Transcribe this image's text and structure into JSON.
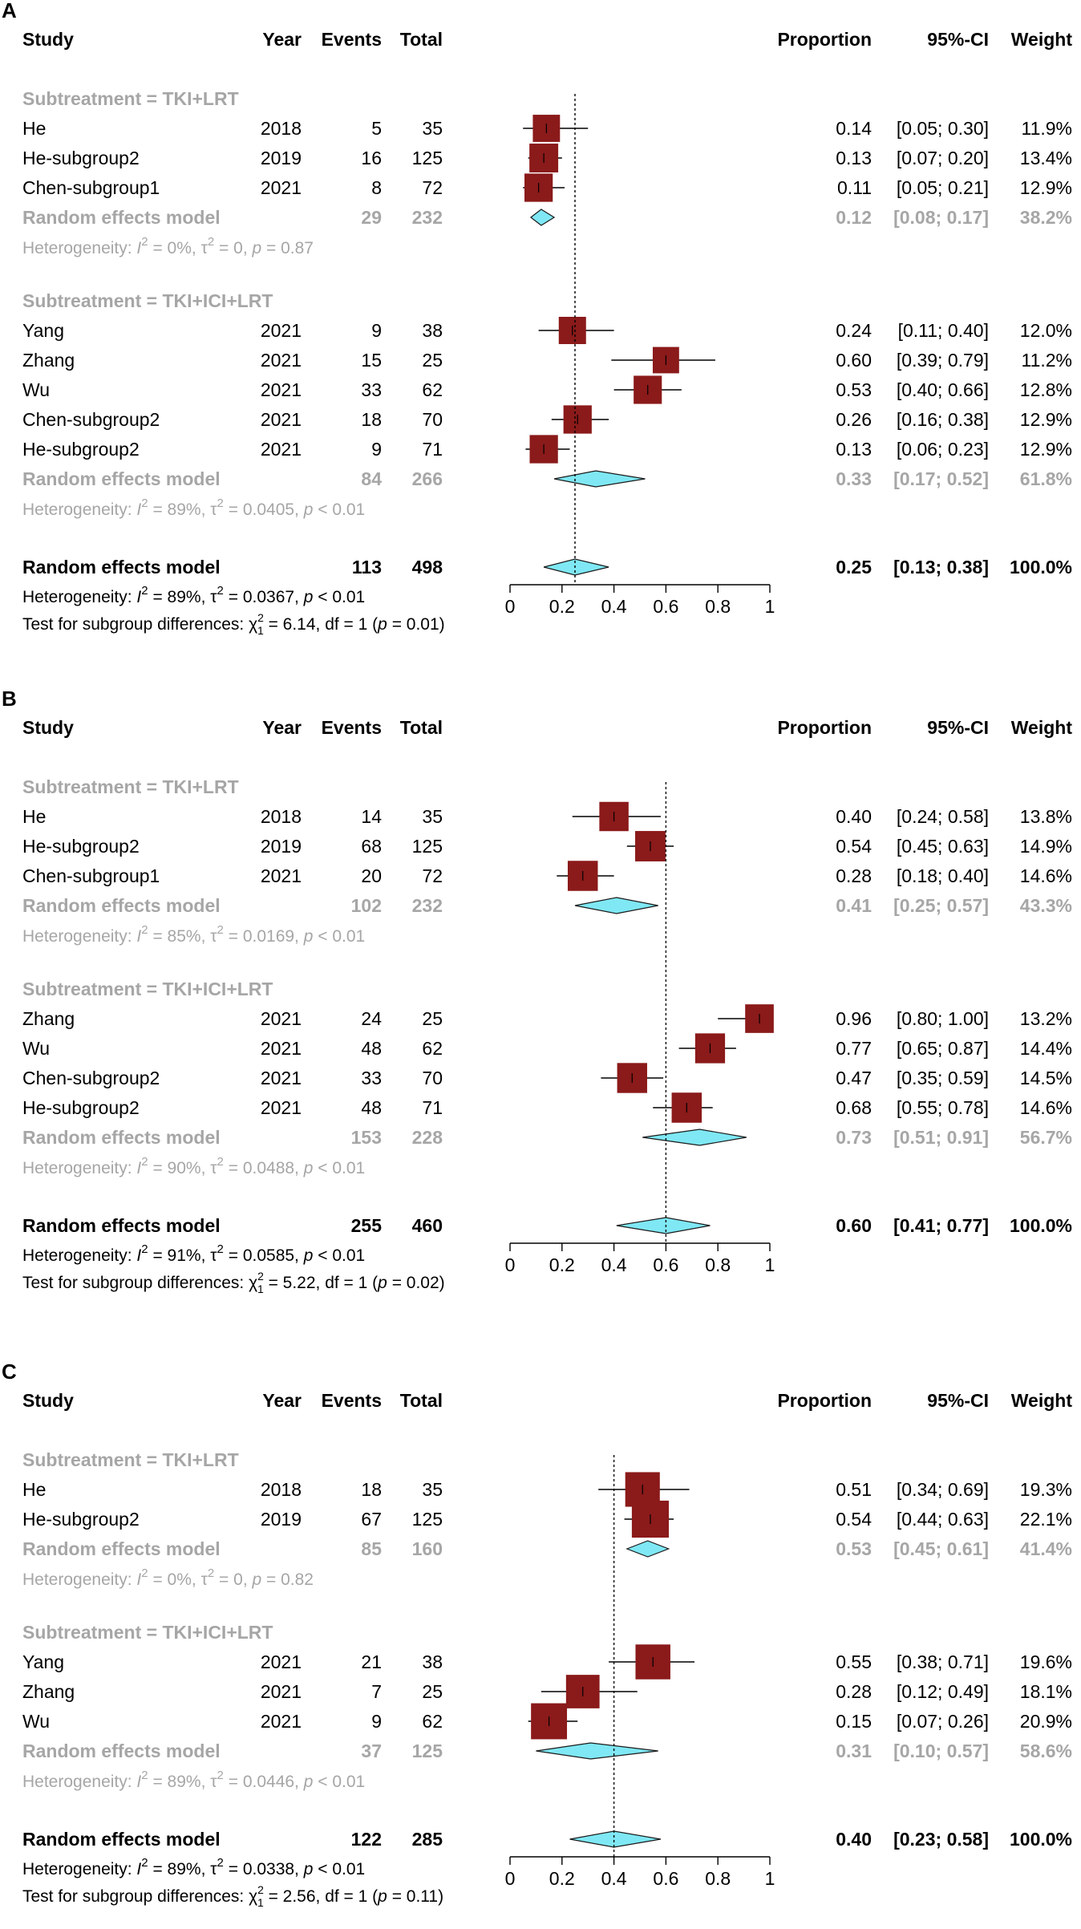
{
  "chart_data": [
    {
      "type": "forest",
      "panel_label": "A",
      "headers": {
        "study": "Study",
        "year": "Year",
        "events": "Events",
        "total": "Total",
        "proportion": "Proportion",
        "ci": "95%-CI",
        "weight": "Weight"
      },
      "x_axis": {
        "range": [
          0,
          1
        ],
        "ticks": [
          0,
          0.2,
          0.4,
          0.6,
          0.8,
          1
        ],
        "tick_labels": [
          "0",
          "0.2",
          "0.4",
          "0.6",
          "0.8",
          "1"
        ]
      },
      "reference_line": 0.25,
      "subgroups": [
        {
          "label": "Subtreatment = TKI+LRT",
          "studies": [
            {
              "study": "He",
              "year": "2018",
              "events": "5",
              "total": "35",
              "prop": 0.14,
              "lo": 0.05,
              "hi": 0.3,
              "prop_text": "0.14",
              "ci_text": "[0.05; 0.30]",
              "weight_text": "11.9%",
              "w": 11.9
            },
            {
              "study": "He-subgroup2",
              "year": "2019",
              "events": "16",
              "total": "125",
              "prop": 0.13,
              "lo": 0.07,
              "hi": 0.2,
              "prop_text": "0.13",
              "ci_text": "[0.07; 0.20]",
              "weight_text": "13.4%",
              "w": 13.4
            },
            {
              "study": "Chen-subgroup1",
              "year": "2021",
              "events": "8",
              "total": "72",
              "prop": 0.11,
              "lo": 0.05,
              "hi": 0.21,
              "prop_text": "0.11",
              "ci_text": "[0.05; 0.21]",
              "weight_text": "12.9%",
              "w": 12.9
            }
          ],
          "model": {
            "label": "Random effects model",
            "events": "29",
            "total": "232",
            "prop": 0.12,
            "lo": 0.08,
            "hi": 0.17,
            "prop_text": "0.12",
            "ci_text": "[0.08; 0.17]",
            "weight_text": "38.2%"
          },
          "heterogeneity": {
            "prefix": "Heterogeneity: ",
            "i2": "= 0%, ",
            "tau2": " = 0, ",
            "p": " = 0.87"
          }
        },
        {
          "label": "Subtreatment = TKI+ICI+LRT",
          "studies": [
            {
              "study": "Yang",
              "year": "2021",
              "events": "9",
              "total": "38",
              "prop": 0.24,
              "lo": 0.11,
              "hi": 0.4,
              "prop_text": "0.24",
              "ci_text": "[0.11; 0.40]",
              "weight_text": "12.0%",
              "w": 12.0
            },
            {
              "study": "Zhang",
              "year": "2021",
              "events": "15",
              "total": "25",
              "prop": 0.6,
              "lo": 0.39,
              "hi": 0.79,
              "prop_text": "0.60",
              "ci_text": "[0.39; 0.79]",
              "weight_text": "11.2%",
              "w": 11.2
            },
            {
              "study": "Wu",
              "year": "2021",
              "events": "33",
              "total": "62",
              "prop": 0.53,
              "lo": 0.4,
              "hi": 0.66,
              "prop_text": "0.53",
              "ci_text": "[0.40; 0.66]",
              "weight_text": "12.8%",
              "w": 12.8
            },
            {
              "study": "Chen-subgroup2",
              "year": "2021",
              "events": "18",
              "total": "70",
              "prop": 0.26,
              "lo": 0.16,
              "hi": 0.38,
              "prop_text": "0.26",
              "ci_text": "[0.16; 0.38]",
              "weight_text": "12.9%",
              "w": 12.9
            },
            {
              "study": "He-subgroup2",
              "year": "2021",
              "events": "9",
              "total": "71",
              "prop": 0.13,
              "lo": 0.06,
              "hi": 0.23,
              "prop_text": "0.13",
              "ci_text": "[0.06; 0.23]",
              "weight_text": "12.9%",
              "w": 12.9
            }
          ],
          "model": {
            "label": "Random effects model",
            "events": "84",
            "total": "266",
            "prop": 0.33,
            "lo": 0.17,
            "hi": 0.52,
            "prop_text": "0.33",
            "ci_text": "[0.17; 0.52]",
            "weight_text": "61.8%"
          },
          "heterogeneity": {
            "prefix": "Heterogeneity: ",
            "i2": "= 89%, ",
            "tau2": " = 0.0405, ",
            "p": " < 0.01"
          }
        }
      ],
      "overall": {
        "label": "Random effects model",
        "events": "113",
        "total": "498",
        "prop": 0.25,
        "lo": 0.13,
        "hi": 0.38,
        "prop_text": "0.25",
        "ci_text": "[0.13; 0.38]",
        "weight_text": "100.0%"
      },
      "overall_heterogeneity": {
        "prefix": "Heterogeneity: ",
        "i2": "= 89%, ",
        "tau2": " = 0.0367, ",
        "p": " < 0.01"
      },
      "subgroup_test": {
        "prefix": "Test for subgroup differences: ",
        "chi_value": " = 6.14, df = 1 (",
        "p_value": " = 0.01)"
      }
    },
    {
      "type": "forest",
      "panel_label": "B",
      "headers": {
        "study": "Study",
        "year": "Year",
        "events": "Events",
        "total": "Total",
        "proportion": "Proportion",
        "ci": "95%-CI",
        "weight": "Weight"
      },
      "x_axis": {
        "range": [
          0,
          1
        ],
        "ticks": [
          0,
          0.2,
          0.4,
          0.6,
          0.8,
          1
        ],
        "tick_labels": [
          "0",
          "0.2",
          "0.4",
          "0.6",
          "0.8",
          "1"
        ]
      },
      "reference_line": 0.6,
      "subgroups": [
        {
          "label": "Subtreatment = TKI+LRT",
          "studies": [
            {
              "study": "He",
              "year": "2018",
              "events": "14",
              "total": "35",
              "prop": 0.4,
              "lo": 0.24,
              "hi": 0.58,
              "prop_text": "0.40",
              "ci_text": "[0.24; 0.58]",
              "weight_text": "13.8%",
              "w": 13.8
            },
            {
              "study": "He-subgroup2",
              "year": "2019",
              "events": "68",
              "total": "125",
              "prop": 0.54,
              "lo": 0.45,
              "hi": 0.63,
              "prop_text": "0.54",
              "ci_text": "[0.45; 0.63]",
              "weight_text": "14.9%",
              "w": 14.9
            },
            {
              "study": "Chen-subgroup1",
              "year": "2021",
              "events": "20",
              "total": "72",
              "prop": 0.28,
              "lo": 0.18,
              "hi": 0.4,
              "prop_text": "0.28",
              "ci_text": "[0.18; 0.40]",
              "weight_text": "14.6%",
              "w": 14.6
            }
          ],
          "model": {
            "label": "Random effects model",
            "events": "102",
            "total": "232",
            "prop": 0.41,
            "lo": 0.25,
            "hi": 0.57,
            "prop_text": "0.41",
            "ci_text": "[0.25; 0.57]",
            "weight_text": "43.3%"
          },
          "heterogeneity": {
            "prefix": "Heterogeneity: ",
            "i2": "= 85%, ",
            "tau2": " = 0.0169, ",
            "p": " < 0.01"
          }
        },
        {
          "label": "Subtreatment = TKI+ICI+LRT",
          "studies": [
            {
              "study": "Zhang",
              "year": "2021",
              "events": "24",
              "total": "25",
              "prop": 0.96,
              "lo": 0.8,
              "hi": 1.0,
              "prop_text": "0.96",
              "ci_text": "[0.80; 1.00]",
              "weight_text": "13.2%",
              "w": 13.2
            },
            {
              "study": "Wu",
              "year": "2021",
              "events": "48",
              "total": "62",
              "prop": 0.77,
              "lo": 0.65,
              "hi": 0.87,
              "prop_text": "0.77",
              "ci_text": "[0.65; 0.87]",
              "weight_text": "14.4%",
              "w": 14.4
            },
            {
              "study": "Chen-subgroup2",
              "year": "2021",
              "events": "33",
              "total": "70",
              "prop": 0.47,
              "lo": 0.35,
              "hi": 0.59,
              "prop_text": "0.47",
              "ci_text": "[0.35; 0.59]",
              "weight_text": "14.5%",
              "w": 14.5
            },
            {
              "study": "He-subgroup2",
              "year": "2021",
              "events": "48",
              "total": "71",
              "prop": 0.68,
              "lo": 0.55,
              "hi": 0.78,
              "prop_text": "0.68",
              "ci_text": "[0.55; 0.78]",
              "weight_text": "14.6%",
              "w": 14.6
            }
          ],
          "model": {
            "label": "Random effects model",
            "events": "153",
            "total": "228",
            "prop": 0.73,
            "lo": 0.51,
            "hi": 0.91,
            "prop_text": "0.73",
            "ci_text": "[0.51; 0.91]",
            "weight_text": "56.7%"
          },
          "heterogeneity": {
            "prefix": "Heterogeneity: ",
            "i2": "= 90%, ",
            "tau2": " = 0.0488, ",
            "p": " < 0.01"
          }
        }
      ],
      "overall": {
        "label": "Random effects model",
        "events": "255",
        "total": "460",
        "prop": 0.6,
        "lo": 0.41,
        "hi": 0.77,
        "prop_text": "0.60",
        "ci_text": "[0.41; 0.77]",
        "weight_text": "100.0%"
      },
      "overall_heterogeneity": {
        "prefix": "Heterogeneity: ",
        "i2": "= 91%, ",
        "tau2": " = 0.0585, ",
        "p": " < 0.01"
      },
      "subgroup_test": {
        "prefix": "Test for subgroup differences: ",
        "chi_value": " = 5.22, df = 1 (",
        "p_value": " = 0.02)"
      }
    },
    {
      "type": "forest",
      "panel_label": "C",
      "headers": {
        "study": "Study",
        "year": "Year",
        "events": "Events",
        "total": "Total",
        "proportion": "Proportion",
        "ci": "95%-CI",
        "weight": "Weight"
      },
      "x_axis": {
        "range": [
          0,
          1
        ],
        "ticks": [
          0,
          0.2,
          0.4,
          0.6,
          0.8,
          1
        ],
        "tick_labels": [
          "0",
          "0.2",
          "0.4",
          "0.6",
          "0.8",
          "1"
        ]
      },
      "reference_line": 0.4,
      "subgroups": [
        {
          "label": "Subtreatment = TKI+LRT",
          "studies": [
            {
              "study": "He",
              "year": "2018",
              "events": "18",
              "total": "35",
              "prop": 0.51,
              "lo": 0.34,
              "hi": 0.69,
              "prop_text": "0.51",
              "ci_text": "[0.34; 0.69]",
              "weight_text": "19.3%",
              "w": 19.3
            },
            {
              "study": "He-subgroup2",
              "year": "2019",
              "events": "67",
              "total": "125",
              "prop": 0.54,
              "lo": 0.44,
              "hi": 0.63,
              "prop_text": "0.54",
              "ci_text": "[0.44; 0.63]",
              "weight_text": "22.1%",
              "w": 22.1
            }
          ],
          "model": {
            "label": "Random effects model",
            "events": "85",
            "total": "160",
            "prop": 0.53,
            "lo": 0.45,
            "hi": 0.61,
            "prop_text": "0.53",
            "ci_text": "[0.45; 0.61]",
            "weight_text": "41.4%"
          },
          "heterogeneity": {
            "prefix": "Heterogeneity: ",
            "i2": "= 0%, ",
            "tau2": " = 0, ",
            "p": " = 0.82"
          }
        },
        {
          "label": "Subtreatment = TKI+ICI+LRT",
          "studies": [
            {
              "study": "Yang",
              "year": "2021",
              "events": "21",
              "total": "38",
              "prop": 0.55,
              "lo": 0.38,
              "hi": 0.71,
              "prop_text": "0.55",
              "ci_text": "[0.38; 0.71]",
              "weight_text": "19.6%",
              "w": 19.6
            },
            {
              "study": "Zhang",
              "year": "2021",
              "events": "7",
              "total": "25",
              "prop": 0.28,
              "lo": 0.12,
              "hi": 0.49,
              "prop_text": "0.28",
              "ci_text": "[0.12; 0.49]",
              "weight_text": "18.1%",
              "w": 18.1
            },
            {
              "study": "Wu",
              "year": "2021",
              "events": "9",
              "total": "62",
              "prop": 0.15,
              "lo": 0.07,
              "hi": 0.26,
              "prop_text": "0.15",
              "ci_text": "[0.07; 0.26]",
              "weight_text": "20.9%",
              "w": 20.9
            }
          ],
          "model": {
            "label": "Random effects model",
            "events": "37",
            "total": "125",
            "prop": 0.31,
            "lo": 0.1,
            "hi": 0.57,
            "prop_text": "0.31",
            "ci_text": "[0.10; 0.57]",
            "weight_text": "58.6%"
          },
          "heterogeneity": {
            "prefix": "Heterogeneity: ",
            "i2": "= 89%, ",
            "tau2": " = 0.0446, ",
            "p": " < 0.01"
          }
        }
      ],
      "overall": {
        "label": "Random effects model",
        "events": "122",
        "total": "285",
        "prop": 0.4,
        "lo": 0.23,
        "hi": 0.58,
        "prop_text": "0.40",
        "ci_text": "[0.23; 0.58]",
        "weight_text": "100.0%"
      },
      "overall_heterogeneity": {
        "prefix": "Heterogeneity: ",
        "i2": "= 89%, ",
        "tau2": " = 0.0338, ",
        "p": " < 0.01"
      },
      "subgroup_test": {
        "prefix": "Test for subgroup differences: ",
        "chi_value": " = 2.56, df = 1 (",
        "p_value": " = 0.11)"
      }
    }
  ],
  "colors": {
    "text": "#000000",
    "subgroup_text": "#a6a6a6",
    "box_fill": "#8b1a1a",
    "diamond_fill": "#7fe8f4",
    "diamond_stroke": "#1a1a1a"
  }
}
